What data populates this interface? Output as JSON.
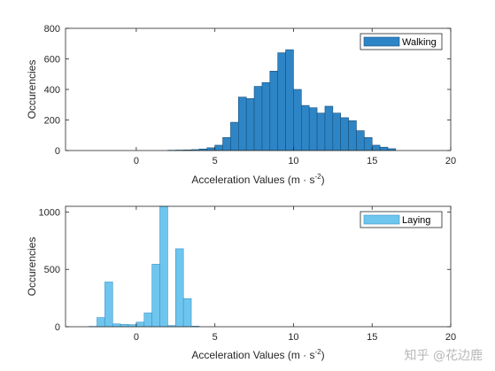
{
  "watermark": "知乎 @花边鹿",
  "chart_data": [
    {
      "type": "bar",
      "xlabel": "Acceleration Values (m · s",
      "xlabel_sup": "-2",
      "ylabel": "Occurencies",
      "xlim": [
        -4.5,
        20
      ],
      "ylim": [
        0,
        800
      ],
      "xticks": [
        "0",
        "5",
        "10",
        "15",
        "20"
      ],
      "yticks": [
        "0",
        "200",
        "400",
        "600",
        "800"
      ],
      "bin_width": 0.5,
      "color": "#2e85c6",
      "edge": "#1a4f78",
      "legend": {
        "label": "Walking",
        "position": "top-right"
      },
      "bins": [
        {
          "x": 2.0,
          "y": 2
        },
        {
          "x": 2.5,
          "y": 3
        },
        {
          "x": 3.0,
          "y": 4
        },
        {
          "x": 3.5,
          "y": 6
        },
        {
          "x": 4.0,
          "y": 10
        },
        {
          "x": 4.5,
          "y": 18
        },
        {
          "x": 5.0,
          "y": 35
        },
        {
          "x": 5.5,
          "y": 85
        },
        {
          "x": 6.0,
          "y": 185
        },
        {
          "x": 6.5,
          "y": 350
        },
        {
          "x": 7.0,
          "y": 340
        },
        {
          "x": 7.5,
          "y": 420
        },
        {
          "x": 8.0,
          "y": 445
        },
        {
          "x": 8.5,
          "y": 520
        },
        {
          "x": 9.0,
          "y": 640
        },
        {
          "x": 9.5,
          "y": 660
        },
        {
          "x": 10.0,
          "y": 400
        },
        {
          "x": 10.5,
          "y": 295
        },
        {
          "x": 11.0,
          "y": 280
        },
        {
          "x": 11.5,
          "y": 245
        },
        {
          "x": 12.0,
          "y": 290
        },
        {
          "x": 12.5,
          "y": 245
        },
        {
          "x": 13.0,
          "y": 215
        },
        {
          "x": 13.5,
          "y": 195
        },
        {
          "x": 14.0,
          "y": 130
        },
        {
          "x": 14.5,
          "y": 85
        },
        {
          "x": 15.0,
          "y": 35
        },
        {
          "x": 15.5,
          "y": 22
        },
        {
          "x": 16.0,
          "y": 12
        }
      ]
    },
    {
      "type": "bar",
      "xlabel": "Acceleration Values (m · s",
      "xlabel_sup": "-2",
      "ylabel": "Occurencies",
      "xlim": [
        -4.5,
        20
      ],
      "ylim": [
        0,
        1050
      ],
      "xticks": [
        "0",
        "5",
        "10",
        "15",
        "20"
      ],
      "yticks": [
        "0",
        "500",
        "1000"
      ],
      "bin_width": 0.5,
      "color": "#6ec6ee",
      "edge": "#3a95c8",
      "legend": {
        "label": "Laying",
        "position": "top-right"
      },
      "bins": [
        {
          "x": -3.0,
          "y": 3
        },
        {
          "x": -2.5,
          "y": 80
        },
        {
          "x": -2.0,
          "y": 390
        },
        {
          "x": -1.5,
          "y": 25
        },
        {
          "x": -1.0,
          "y": 20
        },
        {
          "x": -0.5,
          "y": 18
        },
        {
          "x": 0.0,
          "y": 40
        },
        {
          "x": 0.5,
          "y": 120
        },
        {
          "x": 1.0,
          "y": 545
        },
        {
          "x": 1.5,
          "y": 1050
        },
        {
          "x": 2.0,
          "y": 10
        },
        {
          "x": 2.5,
          "y": 680
        },
        {
          "x": 3.0,
          "y": 245
        },
        {
          "x": 3.5,
          "y": 5
        }
      ]
    }
  ]
}
